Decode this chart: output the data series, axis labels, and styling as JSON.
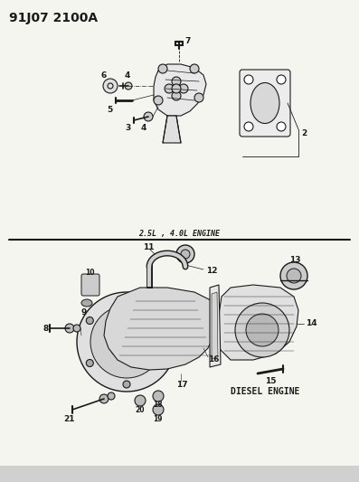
{
  "title": "91J07 2100A",
  "bg_color": "#f5f5f0",
  "top_label": "2.5L , 4.0L ENGINE",
  "bottom_label": "DIESEL ENGINE",
  "line_color": "#1a1a1a",
  "text_color": "#1a1a1a",
  "title_fontsize": 10,
  "part_fontsize": 6.5,
  "label_fontsize": 6
}
